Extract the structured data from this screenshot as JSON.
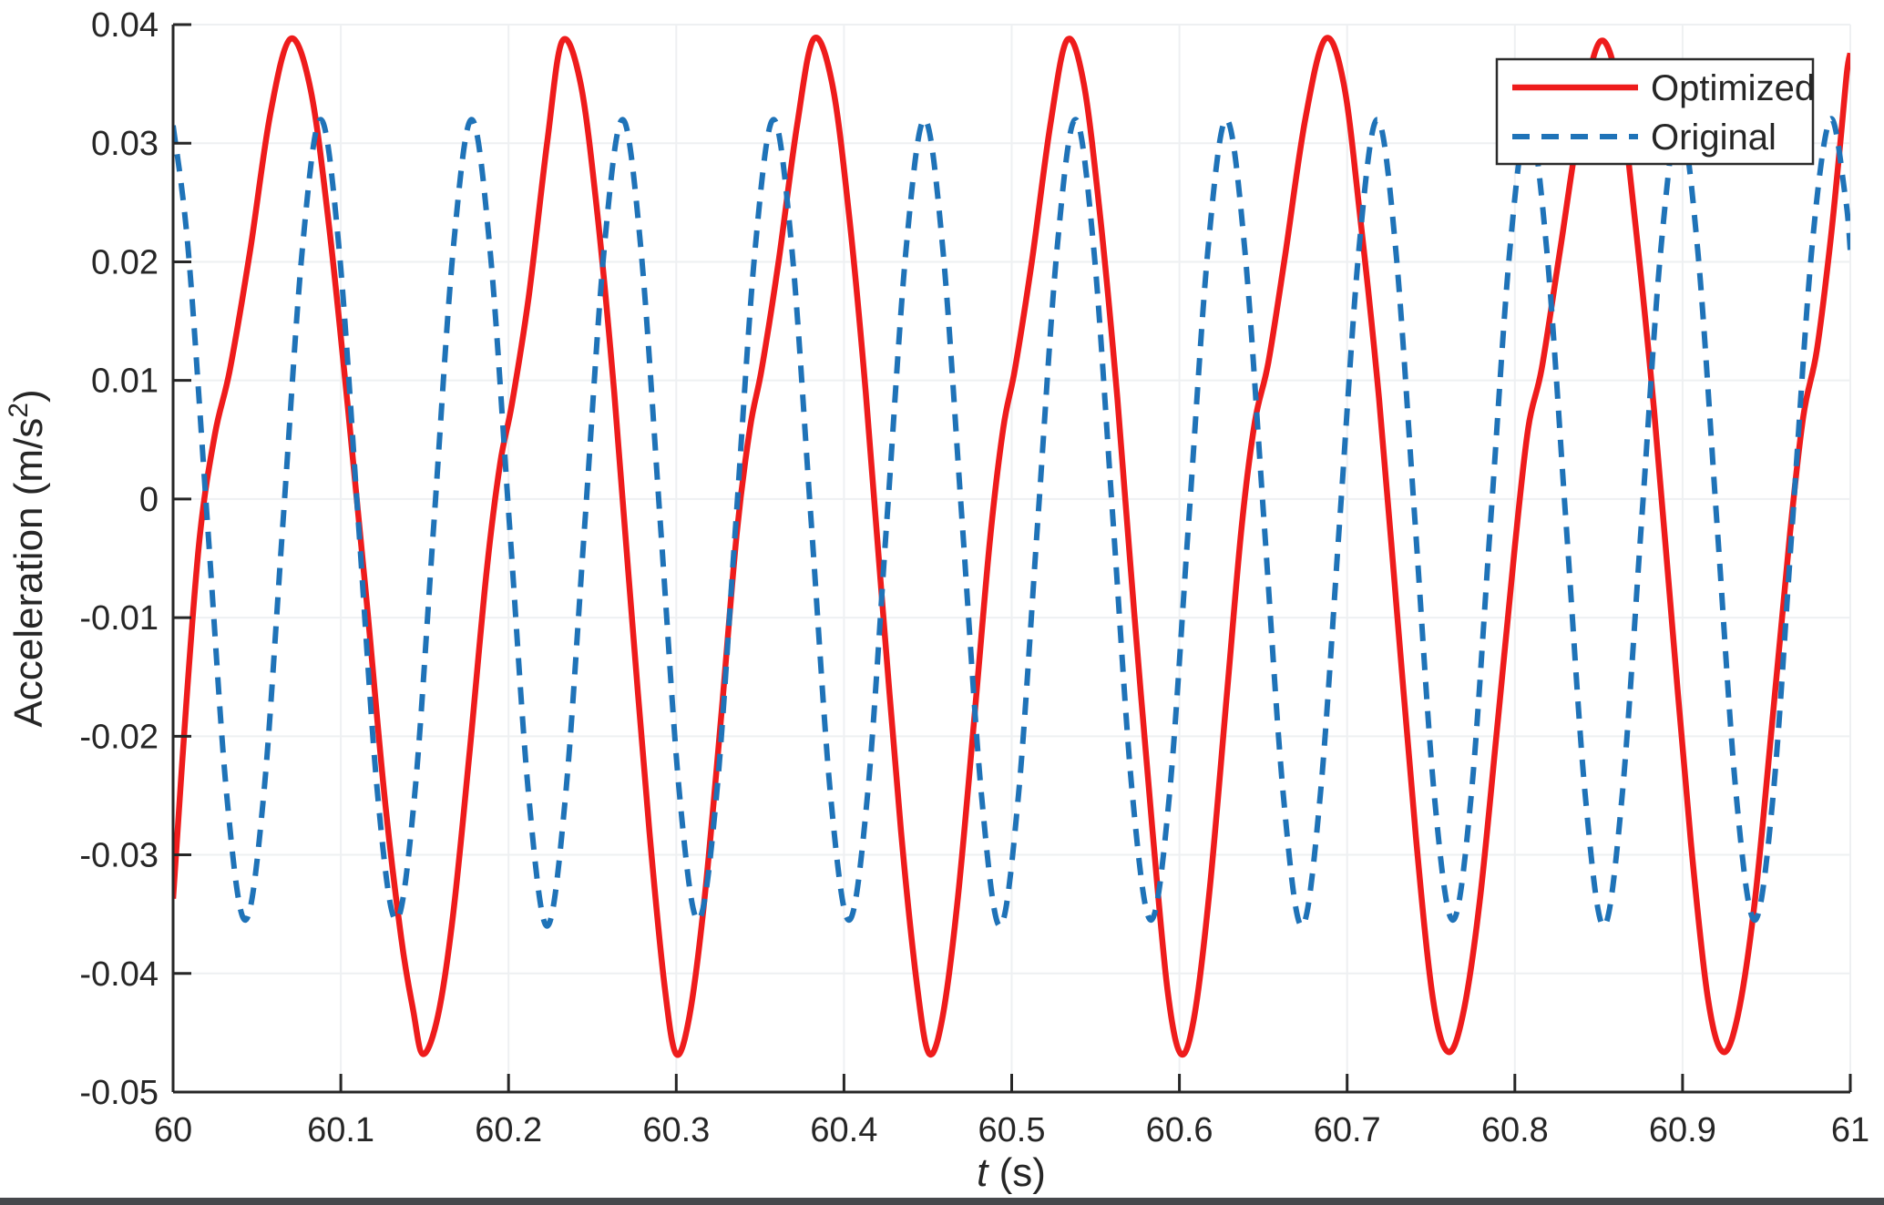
{
  "chart_data": {
    "type": "line",
    "title": "",
    "xlabel": {
      "italic": "t",
      "rest": " (s)"
    },
    "ylabel": {
      "prefix": "Acceleration (m/s",
      "superscript": "2",
      "suffix": ")"
    },
    "xlim": [
      60,
      61
    ],
    "ylim": [
      -0.05,
      0.04
    ],
    "grid": true,
    "xticks": {
      "values": [
        60,
        60.1,
        60.2,
        60.3,
        60.4,
        60.5,
        60.6,
        60.7,
        60.8,
        60.9,
        61
      ],
      "labels": [
        "60",
        "60.1",
        "60.2",
        "60.3",
        "60.4",
        "60.5",
        "60.6",
        "60.7",
        "60.8",
        "60.9",
        "61"
      ]
    },
    "yticks": {
      "values": [
        0.04,
        0.03,
        0.02,
        0.01,
        0,
        -0.01,
        -0.02,
        -0.03,
        -0.04,
        -0.05
      ],
      "labels": [
        "0.04",
        "0.03",
        "0.02",
        "0.01",
        "0",
        "-0.01",
        "-0.02",
        "-0.03",
        "-0.04",
        "-0.05"
      ]
    },
    "legend": {
      "position": "northeast",
      "items": [
        {
          "label": "Optimized",
          "color": "#ee1c1c",
          "style": "solid"
        },
        {
          "label": "Original",
          "color": "#1f73b8",
          "style": "dashed"
        }
      ]
    },
    "series": [
      {
        "name": "Optimized",
        "color": "#ee1c1c",
        "style": "solid",
        "line_width": 6.5,
        "points": [
          [
            60.0,
            -0.0337
          ],
          [
            60.008,
            -0.017
          ],
          [
            60.016,
            -0.003
          ],
          [
            60.025,
            0.0055
          ],
          [
            60.034,
            0.011
          ],
          [
            60.046,
            0.021
          ],
          [
            60.058,
            0.0325
          ],
          [
            60.07,
            0.0388
          ],
          [
            60.082,
            0.0345
          ],
          [
            60.093,
            0.023
          ],
          [
            60.104,
            0.008
          ],
          [
            60.115,
            -0.008
          ],
          [
            60.126,
            -0.025
          ],
          [
            60.136,
            -0.037
          ],
          [
            60.143,
            -0.043
          ],
          [
            60.149,
            -0.0468
          ],
          [
            60.158,
            -0.0435
          ],
          [
            60.167,
            -0.035
          ],
          [
            60.177,
            -0.021
          ],
          [
            60.187,
            -0.006
          ],
          [
            60.195,
            0.003
          ],
          [
            60.202,
            0.008
          ],
          [
            60.212,
            0.017
          ],
          [
            60.223,
            0.03
          ],
          [
            60.232,
            0.0386
          ],
          [
            60.243,
            0.035
          ],
          [
            60.253,
            0.024
          ],
          [
            60.263,
            0.009
          ],
          [
            60.273,
            -0.009
          ],
          [
            60.284,
            -0.028
          ],
          [
            60.293,
            -0.041
          ],
          [
            60.3,
            -0.0468
          ],
          [
            60.308,
            -0.0435
          ],
          [
            60.317,
            -0.0335
          ],
          [
            60.327,
            -0.018
          ],
          [
            60.336,
            -0.003
          ],
          [
            60.344,
            0.006
          ],
          [
            60.351,
            0.011
          ],
          [
            60.361,
            0.02
          ],
          [
            60.372,
            0.0315
          ],
          [
            60.382,
            0.0388
          ],
          [
            60.393,
            0.035
          ],
          [
            60.403,
            0.024
          ],
          [
            60.413,
            0.009
          ],
          [
            60.423,
            -0.009
          ],
          [
            60.434,
            -0.028
          ],
          [
            60.444,
            -0.0415
          ],
          [
            60.451,
            -0.0468
          ],
          [
            60.459,
            -0.0435
          ],
          [
            60.468,
            -0.0335
          ],
          [
            60.478,
            -0.018
          ],
          [
            60.487,
            -0.0035
          ],
          [
            60.495,
            0.006
          ],
          [
            60.502,
            0.011
          ],
          [
            60.512,
            0.02
          ],
          [
            60.523,
            0.0315
          ],
          [
            60.533,
            0.0387
          ],
          [
            60.543,
            0.035
          ],
          [
            60.553,
            0.0235
          ],
          [
            60.563,
            0.0085
          ],
          [
            60.573,
            -0.0095
          ],
          [
            60.584,
            -0.028
          ],
          [
            60.593,
            -0.0415
          ],
          [
            60.601,
            -0.0468
          ],
          [
            60.609,
            -0.0435
          ],
          [
            60.618,
            -0.033
          ],
          [
            60.628,
            -0.017
          ],
          [
            60.637,
            -0.0025
          ],
          [
            60.645,
            0.0065
          ],
          [
            60.653,
            0.0115
          ],
          [
            60.663,
            0.0205
          ],
          [
            60.675,
            0.032
          ],
          [
            60.687,
            0.0388
          ],
          [
            60.698,
            0.035
          ],
          [
            60.708,
            0.0235
          ],
          [
            60.719,
            0.0085
          ],
          [
            60.73,
            -0.01
          ],
          [
            60.741,
            -0.0285
          ],
          [
            60.751,
            -0.042
          ],
          [
            60.76,
            -0.0466
          ],
          [
            60.769,
            -0.0435
          ],
          [
            60.779,
            -0.034
          ],
          [
            60.79,
            -0.0185
          ],
          [
            60.8,
            -0.004
          ],
          [
            60.808,
            0.006
          ],
          [
            60.816,
            0.011
          ],
          [
            60.827,
            0.021
          ],
          [
            60.839,
            0.032
          ],
          [
            60.851,
            0.0386
          ],
          [
            60.862,
            0.0345
          ],
          [
            60.872,
            0.023
          ],
          [
            60.883,
            0.0075
          ],
          [
            60.894,
            -0.011
          ],
          [
            60.905,
            -0.029
          ],
          [
            60.915,
            -0.042
          ],
          [
            60.924,
            -0.0466
          ],
          [
            60.933,
            -0.0435
          ],
          [
            60.943,
            -0.034
          ],
          [
            60.954,
            -0.018
          ],
          [
            60.964,
            -0.003
          ],
          [
            60.972,
            0.007
          ],
          [
            60.98,
            0.0125
          ],
          [
            60.988,
            0.0215
          ],
          [
            60.994,
            0.03
          ],
          [
            60.998,
            0.036
          ],
          [
            61.0,
            0.0376
          ]
        ]
      },
      {
        "name": "Original",
        "color": "#1f73b8",
        "style": "dashed",
        "line_width": 6,
        "points": [
          [
            60.0,
            0.0315
          ],
          [
            60.009,
            0.021
          ],
          [
            60.0205,
            -0.002
          ],
          [
            60.032,
            -0.025
          ],
          [
            60.043,
            -0.0355
          ],
          [
            60.054,
            -0.025
          ],
          [
            60.0655,
            -0.002
          ],
          [
            60.077,
            0.021
          ],
          [
            60.088,
            0.032
          ],
          [
            60.099,
            0.021
          ],
          [
            60.1105,
            -0.002
          ],
          [
            60.122,
            -0.025
          ],
          [
            60.133,
            -0.0355
          ],
          [
            60.144,
            -0.025
          ],
          [
            60.1555,
            -0.002
          ],
          [
            60.167,
            0.021
          ],
          [
            60.178,
            0.032
          ],
          [
            60.189,
            0.021
          ],
          [
            60.2005,
            -0.002
          ],
          [
            60.212,
            -0.025
          ],
          [
            60.223,
            -0.036
          ],
          [
            60.234,
            -0.025
          ],
          [
            60.2455,
            -0.002
          ],
          [
            60.257,
            0.021
          ],
          [
            60.268,
            0.032
          ],
          [
            60.279,
            0.021
          ],
          [
            60.2905,
            -0.002
          ],
          [
            60.302,
            -0.025
          ],
          [
            60.313,
            -0.0355
          ],
          [
            60.324,
            -0.025
          ],
          [
            60.3355,
            -0.002
          ],
          [
            60.347,
            0.021
          ],
          [
            60.358,
            0.032
          ],
          [
            60.369,
            0.021
          ],
          [
            60.3805,
            -0.002
          ],
          [
            60.392,
            -0.025
          ],
          [
            60.403,
            -0.0355
          ],
          [
            60.414,
            -0.025
          ],
          [
            60.4255,
            -0.002
          ],
          [
            60.437,
            0.021
          ],
          [
            60.448,
            0.032
          ],
          [
            60.459,
            0.021
          ],
          [
            60.4705,
            -0.002
          ],
          [
            60.482,
            -0.025
          ],
          [
            60.493,
            -0.036
          ],
          [
            60.504,
            -0.025
          ],
          [
            60.5155,
            -0.002
          ],
          [
            60.527,
            0.021
          ],
          [
            60.538,
            0.032
          ],
          [
            60.549,
            0.021
          ],
          [
            60.5605,
            -0.002
          ],
          [
            60.572,
            -0.025
          ],
          [
            60.583,
            -0.0355
          ],
          [
            60.594,
            -0.025
          ],
          [
            60.6055,
            -0.002
          ],
          [
            60.617,
            0.021
          ],
          [
            60.628,
            0.032
          ],
          [
            60.639,
            0.021
          ],
          [
            60.6505,
            -0.002
          ],
          [
            60.662,
            -0.025
          ],
          [
            60.673,
            -0.036
          ],
          [
            60.684,
            -0.025
          ],
          [
            60.6955,
            -0.002
          ],
          [
            60.707,
            0.021
          ],
          [
            60.718,
            0.032
          ],
          [
            60.729,
            0.021
          ],
          [
            60.7405,
            -0.002
          ],
          [
            60.752,
            -0.025
          ],
          [
            60.763,
            -0.0355
          ],
          [
            60.774,
            -0.025
          ],
          [
            60.7855,
            -0.002
          ],
          [
            60.797,
            0.021
          ],
          [
            60.808,
            0.032
          ],
          [
            60.819,
            0.021
          ],
          [
            60.8305,
            -0.002
          ],
          [
            60.842,
            -0.025
          ],
          [
            60.853,
            -0.036
          ],
          [
            60.864,
            -0.025
          ],
          [
            60.8755,
            -0.002
          ],
          [
            60.887,
            0.021
          ],
          [
            60.898,
            0.032
          ],
          [
            60.909,
            0.021
          ],
          [
            60.9205,
            -0.002
          ],
          [
            60.932,
            -0.025
          ],
          [
            60.943,
            -0.0355
          ],
          [
            60.954,
            -0.025
          ],
          [
            60.9655,
            -0.002
          ],
          [
            60.977,
            0.021
          ],
          [
            60.988,
            0.032
          ],
          [
            60.997,
            0.0255
          ],
          [
            61.0,
            0.021
          ]
        ]
      }
    ],
    "axis_style": {
      "spine_color": "#262626",
      "grid_color": "#eef0f2",
      "tick_length": 20,
      "tick_label_font_size": 38,
      "axis_label_font_size": 44,
      "legend_font_size": 40
    }
  }
}
